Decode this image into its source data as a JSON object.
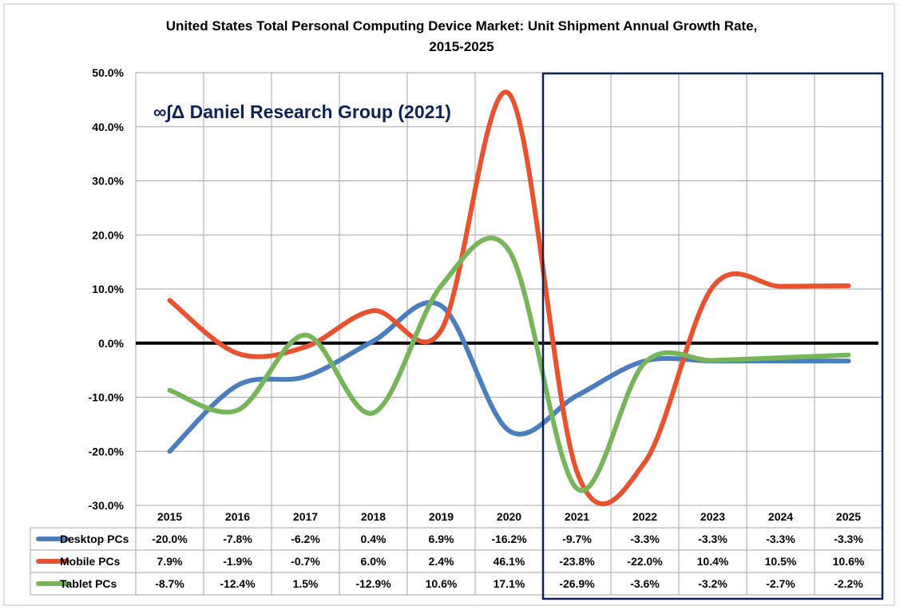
{
  "chart_data": {
    "type": "line",
    "title_line1": "United States Total Personal Computing Device Market: Unit Shipment Annual Growth Rate,",
    "title_line2": "2015-2025",
    "watermark": "∞∫Δ Daniel Research Group (2021)",
    "watermark_color": "#0d2357",
    "categories": [
      "2015",
      "2016",
      "2017",
      "2018",
      "2019",
      "2020",
      "2021",
      "2022",
      "2023",
      "2024",
      "2025"
    ],
    "yticks": [
      "50.0%",
      "40.0%",
      "30.0%",
      "20.0%",
      "10.0%",
      "0.0%",
      "-10.0%",
      "-20.0%",
      "-30.0%"
    ],
    "ylim": [
      -30,
      50
    ],
    "grid": true,
    "forecast_box_from": "2021",
    "forecast_box_color": "#0d2357",
    "legend_placement": "data table rows below chart",
    "series": [
      {
        "name": "Desktop PCs",
        "color": "#4a7ebf",
        "values": [
          -20.0,
          -7.8,
          -6.2,
          0.4,
          6.9,
          -16.2,
          -9.7,
          -3.3,
          -3.3,
          -3.3,
          -3.3
        ],
        "labels": [
          "-20.0%",
          "-7.8%",
          "-6.2%",
          "0.4%",
          "6.9%",
          "-16.2%",
          "-9.7%",
          "-3.3%",
          "-3.3%",
          "-3.3%",
          "-3.3%"
        ]
      },
      {
        "name": "Mobile PCs",
        "color": "#e8522f",
        "values": [
          7.9,
          -1.9,
          -0.7,
          6.0,
          2.4,
          46.1,
          -23.8,
          -22.0,
          10.4,
          10.5,
          10.6
        ],
        "labels": [
          "7.9%",
          "-1.9%",
          "-0.7%",
          "6.0%",
          "2.4%",
          "46.1%",
          "-23.8%",
          "-22.0%",
          "10.4%",
          "10.5%",
          "10.6%"
        ]
      },
      {
        "name": "Tablet PCs",
        "color": "#76b55a",
        "values": [
          -8.7,
          -12.4,
          1.5,
          -12.9,
          10.6,
          17.1,
          -26.9,
          -3.6,
          -3.2,
          -2.7,
          -2.2
        ],
        "labels": [
          "-8.7%",
          "-12.4%",
          "1.5%",
          "-12.9%",
          "10.6%",
          "17.1%",
          "-26.9%",
          "-3.6%",
          "-3.2%",
          "-2.7%",
          "-2.2%"
        ]
      }
    ]
  }
}
